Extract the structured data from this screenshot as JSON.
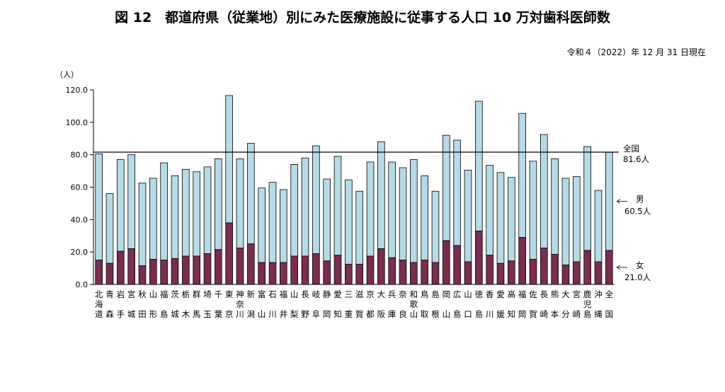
{
  "chart_data": {
    "type": "bar",
    "title": "図 12　都道府県（従業地）別にみた医療施設に従事する人口 10 万対歯科医師数",
    "date_note": "令和４（2022）年 12 月 31 日現在",
    "ylabel": "（人）",
    "ylim": [
      0,
      120
    ],
    "yticks": [
      "0.0",
      "20.0",
      "40.0",
      "60.0",
      "80.0",
      "100.0",
      "120.0"
    ],
    "stacked": true,
    "categories": [
      [
        "北",
        "海",
        "道"
      ],
      [
        "青",
        "",
        "森"
      ],
      [
        "岩",
        "",
        "手"
      ],
      [
        "宮",
        "",
        "城"
      ],
      [
        "秋",
        "",
        "田"
      ],
      [
        "山",
        "",
        "形"
      ],
      [
        "福",
        "",
        "島"
      ],
      [
        "茨",
        "",
        "城"
      ],
      [
        "栃",
        "",
        "木"
      ],
      [
        "群",
        "",
        "馬"
      ],
      [
        "埼",
        "",
        "玉"
      ],
      [
        "千",
        "",
        "葉"
      ],
      [
        "東",
        "",
        "京"
      ],
      [
        "神",
        "奈",
        "川"
      ],
      [
        "新",
        "",
        "潟"
      ],
      [
        "富",
        "",
        "山"
      ],
      [
        "石",
        "",
        "川"
      ],
      [
        "福",
        "",
        "井"
      ],
      [
        "山",
        "",
        "梨"
      ],
      [
        "長",
        "",
        "野"
      ],
      [
        "岐",
        "",
        "阜"
      ],
      [
        "静",
        "",
        "岡"
      ],
      [
        "愛",
        "",
        "知"
      ],
      [
        "三",
        "",
        "重"
      ],
      [
        "滋",
        "",
        "賀"
      ],
      [
        "京",
        "",
        "都"
      ],
      [
        "大",
        "",
        "阪"
      ],
      [
        "兵",
        "",
        "庫"
      ],
      [
        "奈",
        "",
        "良"
      ],
      [
        "和",
        "歌",
        "山"
      ],
      [
        "鳥",
        "",
        "取"
      ],
      [
        "島",
        "",
        "根"
      ],
      [
        "岡",
        "",
        "山"
      ],
      [
        "広",
        "",
        "島"
      ],
      [
        "山",
        "",
        "口"
      ],
      [
        "徳",
        "",
        "島"
      ],
      [
        "香",
        "",
        "川"
      ],
      [
        "愛",
        "",
        "媛"
      ],
      [
        "高",
        "",
        "知"
      ],
      [
        "福",
        "",
        "岡"
      ],
      [
        "佐",
        "",
        "賀"
      ],
      [
        "長",
        "",
        "崎"
      ],
      [
        "熊",
        "",
        "本"
      ],
      [
        "大",
        "",
        "分"
      ],
      [
        "宮",
        "",
        "崎"
      ],
      [
        "鹿",
        "児",
        "島"
      ],
      [
        "沖",
        "",
        "縄"
      ],
      [
        "全",
        "",
        "国"
      ]
    ],
    "series": [
      {
        "key": "female",
        "color": "#7b2c4f",
        "values": [
          15,
          13,
          20.5,
          22,
          11.5,
          15.5,
          15,
          16,
          17.5,
          17.5,
          19,
          21.5,
          38,
          22.5,
          25,
          13.5,
          13.5,
          13.5,
          17.5,
          17.5,
          19,
          14.5,
          18,
          12.5,
          12.5,
          17.5,
          22,
          16.5,
          15,
          13.5,
          15,
          13.5,
          27,
          24,
          14,
          33,
          18,
          13,
          14.5,
          29,
          15.5,
          22.5,
          18.5,
          12,
          14,
          21,
          14,
          21
        ]
      },
      {
        "key": "male",
        "color": "#b4dbe6",
        "values": [
          65.5,
          43,
          56.5,
          58,
          51,
          50,
          60,
          51,
          53.5,
          52,
          53.5,
          56,
          78.5,
          55,
          62,
          46,
          49.5,
          45,
          56.5,
          60.5,
          66.5,
          50.5,
          61,
          52,
          45,
          58,
          66,
          59,
          57,
          63.5,
          52,
          44,
          65,
          65,
          56.5,
          80,
          55.5,
          56,
          51.5,
          76.5,
          60.5,
          70,
          59,
          53.5,
          52.5,
          64,
          44,
          60.5
        ]
      }
    ],
    "reference_line": {
      "value": 81.6,
      "label": "全国",
      "value_label": "81.6人"
    },
    "annotations": [
      {
        "series": "male",
        "label": "男",
        "value_label": "60.5人"
      },
      {
        "series": "female",
        "label": "女",
        "value_label": "21.0人"
      }
    ]
  }
}
